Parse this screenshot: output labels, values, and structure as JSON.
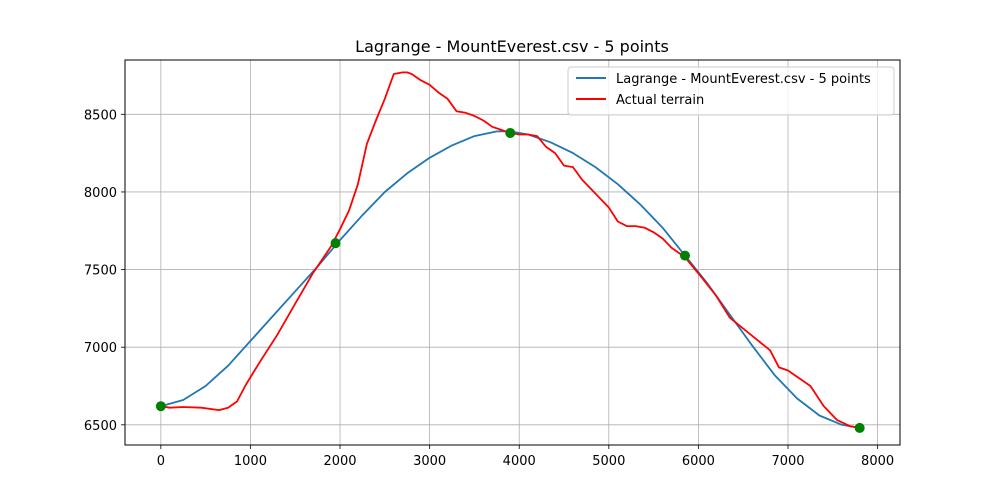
{
  "chart_data": {
    "type": "line",
    "title": "Lagrange - MountEverest.csv - 5 points",
    "xlabel": "",
    "ylabel": "",
    "xlim": [
      -400,
      8250
    ],
    "ylim": [
      6370,
      8850
    ],
    "grid": true,
    "legend_position": "top-right",
    "x_ticks": [
      0,
      1000,
      2000,
      3000,
      4000,
      5000,
      6000,
      7000,
      8000
    ],
    "x_tick_labels": [
      "0",
      "1000",
      "2000",
      "3000",
      "4000",
      "5000",
      "6000",
      "7000",
      "8000"
    ],
    "y_ticks": [
      6500,
      7000,
      7500,
      8000,
      8500
    ],
    "y_tick_labels": [
      "6500",
      "7000",
      "7500",
      "8000",
      "8500"
    ],
    "series": [
      {
        "name": "Lagrange - MountEverest.csv - 5 points",
        "color": "#1f77b4",
        "kind": "interpolant",
        "x": [
          0,
          250,
          500,
          750,
          1000,
          1250,
          1500,
          1750,
          2000,
          2250,
          2500,
          2750,
          3000,
          3250,
          3500,
          3750,
          3900,
          4100,
          4350,
          4600,
          4850,
          5100,
          5350,
          5600,
          5850,
          6100,
          6350,
          6600,
          6850,
          7100,
          7350,
          7600,
          7800
        ],
        "y": [
          6620,
          6660,
          6750,
          6880,
          7040,
          7200,
          7360,
          7520,
          7690,
          7850,
          8000,
          8120,
          8220,
          8300,
          8360,
          8390,
          8390,
          8370,
          8320,
          8250,
          8160,
          8050,
          7920,
          7770,
          7590,
          7410,
          7210,
          7010,
          6820,
          6670,
          6560,
          6500,
          6480
        ]
      },
      {
        "name": "Actual terrain",
        "color": "#ff0000",
        "kind": "data",
        "x": [
          0,
          100,
          250,
          450,
          650,
          750,
          850,
          950,
          1100,
          1300,
          1500,
          1700,
          1900,
          2000,
          2100,
          2200,
          2300,
          2400,
          2500,
          2600,
          2700,
          2750,
          2800,
          2900,
          3000,
          3100,
          3200,
          3300,
          3400,
          3500,
          3600,
          3700,
          3800,
          3900,
          4000,
          4100,
          4200,
          4300,
          4400,
          4500,
          4600,
          4700,
          4800,
          4900,
          5000,
          5100,
          5200,
          5300,
          5400,
          5500,
          5600,
          5700,
          5850,
          5950,
          6050,
          6200,
          6350,
          6500,
          6650,
          6800,
          6900,
          7000,
          7100,
          7250,
          7400,
          7550,
          7700,
          7800
        ],
        "y": [
          6620,
          6610,
          6615,
          6610,
          6595,
          6610,
          6650,
          6760,
          6900,
          7080,
          7280,
          7480,
          7650,
          7760,
          7880,
          8050,
          8310,
          8460,
          8600,
          8760,
          8770,
          8770,
          8760,
          8720,
          8690,
          8640,
          8600,
          8520,
          8510,
          8490,
          8460,
          8420,
          8400,
          8380,
          8370,
          8370,
          8360,
          8290,
          8250,
          8170,
          8160,
          8080,
          8020,
          7960,
          7900,
          7810,
          7780,
          7780,
          7770,
          7740,
          7700,
          7640,
          7580,
          7510,
          7440,
          7330,
          7190,
          7120,
          7050,
          6980,
          6870,
          6850,
          6810,
          6750,
          6620,
          6530,
          6490,
          6480
        ]
      },
      {
        "name": "",
        "color": "#008000",
        "kind": "nodes",
        "x": [
          0,
          1950,
          3900,
          5850,
          7800
        ],
        "y": [
          6620,
          7670,
          8380,
          7590,
          6480
        ]
      }
    ]
  }
}
